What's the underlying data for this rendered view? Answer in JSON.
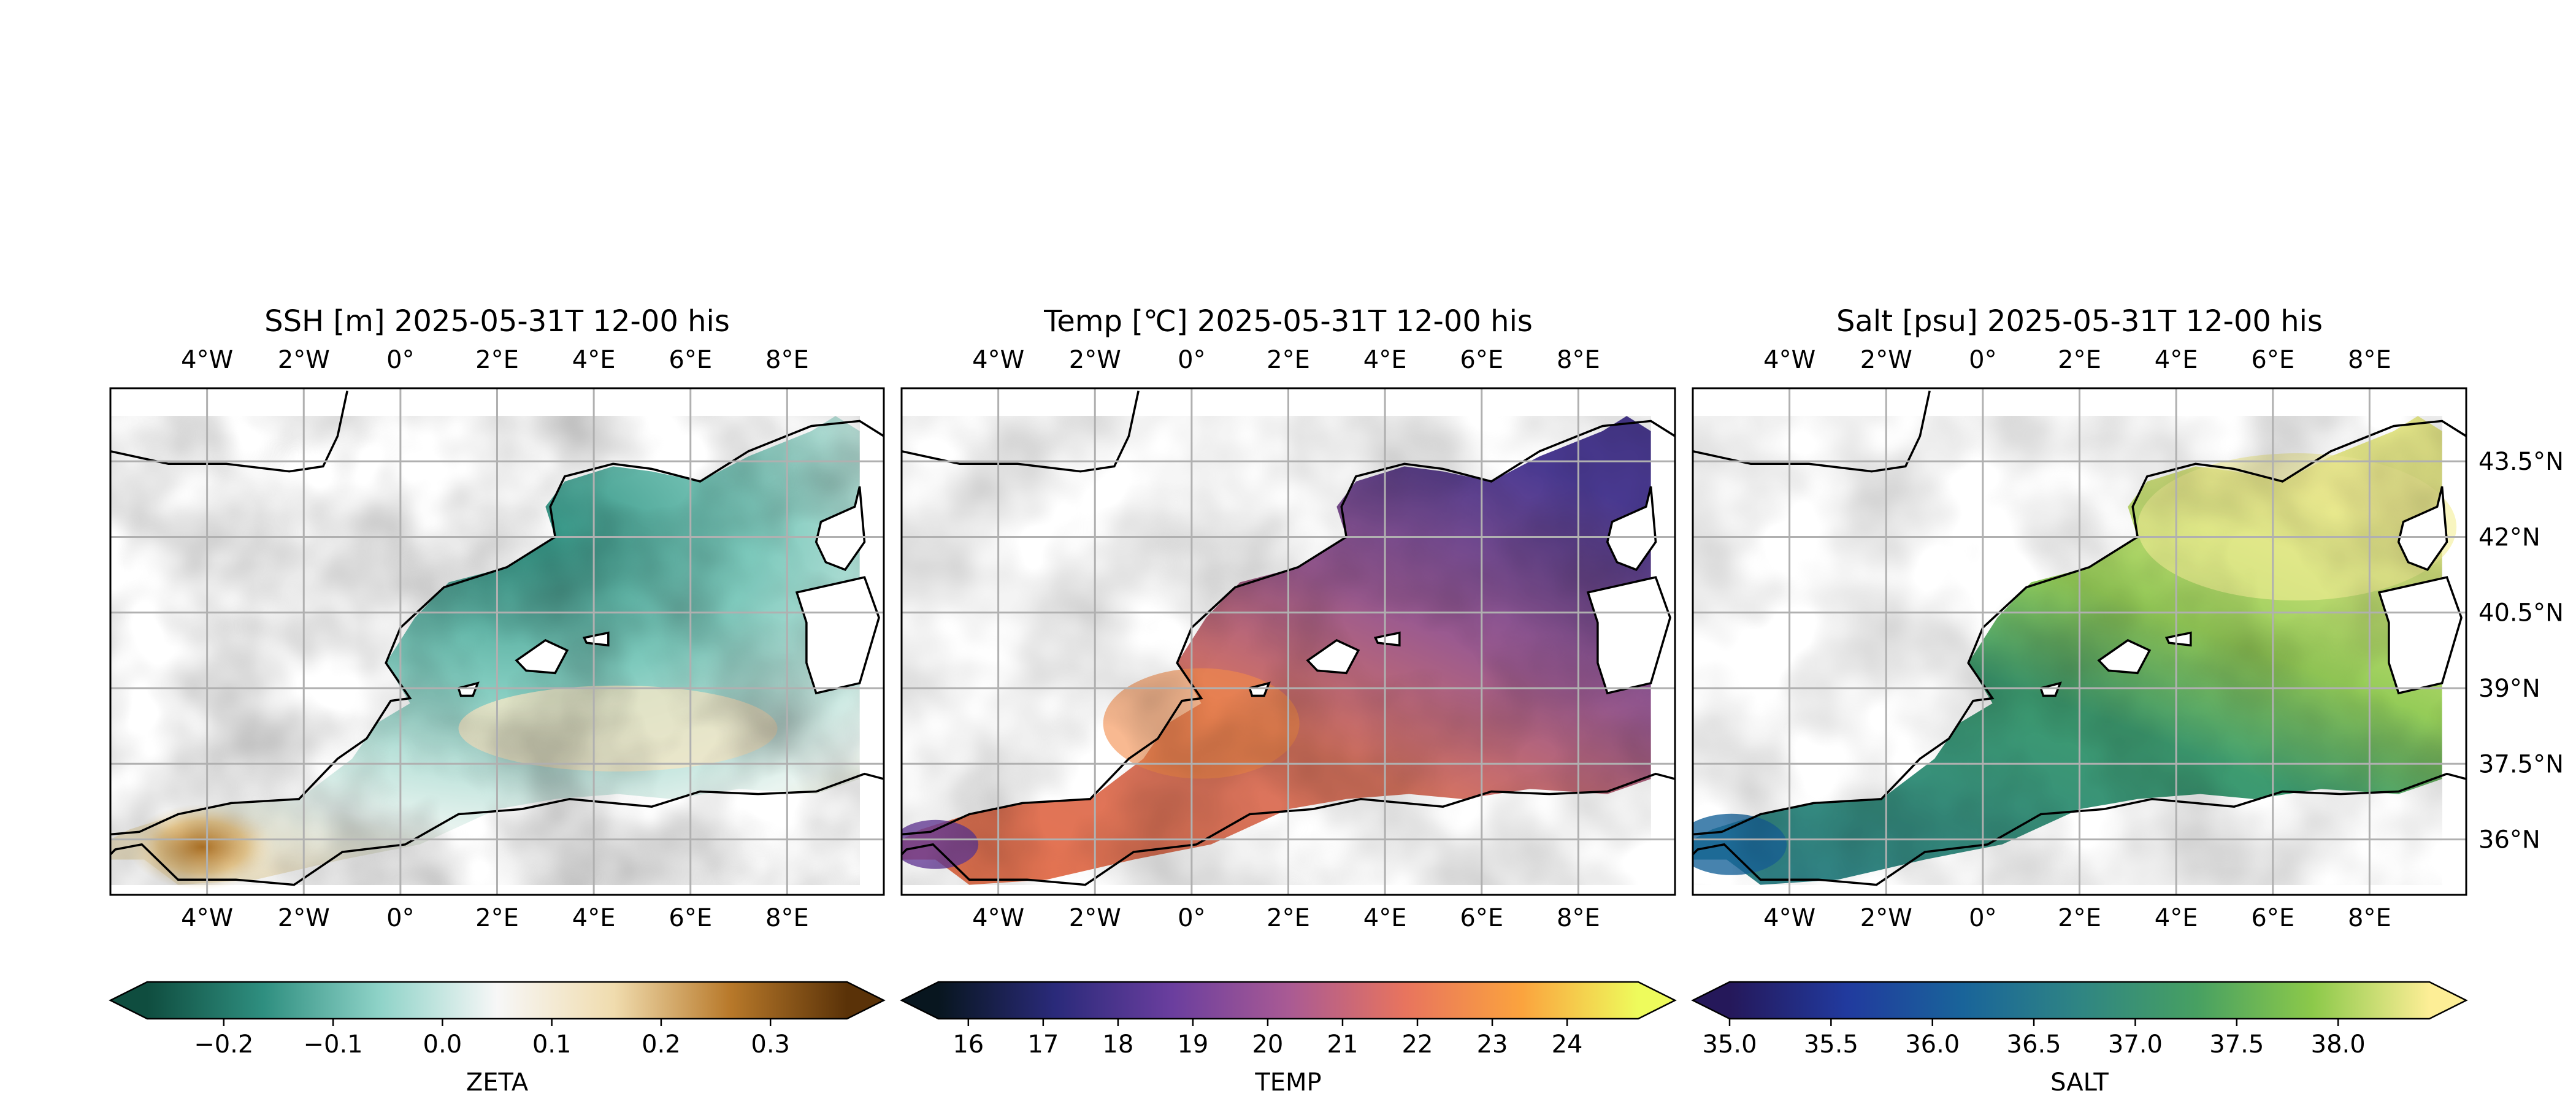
{
  "panels": [
    {
      "title": "SSH [m] 2025-05-31T 12-00 his",
      "colorbar": {
        "label": "ZETA",
        "ticks": [
          "−0.2",
          "−0.1",
          "0.0",
          "0.1",
          "0.2",
          "0.3"
        ],
        "tick_values": [
          -0.2,
          -0.1,
          0.0,
          0.1,
          0.2,
          0.3
        ],
        "range": [
          -0.27,
          0.37
        ],
        "colors": [
          "#0f4d3f",
          "#2f8f80",
          "#8fd3c8",
          "#f7f7f7",
          "#f0dcae",
          "#b8792a",
          "#5a3208"
        ]
      }
    },
    {
      "title": "Temp [℃] 2025-05-31T 12-00 his",
      "colorbar": {
        "label": "TEMP",
        "ticks": [
          "16",
          "17",
          "18",
          "19",
          "20",
          "21",
          "22",
          "23",
          "24"
        ],
        "tick_values": [
          16,
          17,
          18,
          19,
          20,
          21,
          22,
          23,
          24
        ],
        "range": [
          15.6,
          24.95
        ],
        "colors": [
          "#08161f",
          "#2a2a7a",
          "#6a3e9e",
          "#a95a94",
          "#e8745e",
          "#fba33e",
          "#eefb5c"
        ]
      }
    },
    {
      "title": "Salt [psu] 2025-05-31T 12-00 his",
      "colorbar": {
        "label": "SALT",
        "ticks": [
          "35.0",
          "35.5",
          "36.0",
          "36.5",
          "37.0",
          "37.5",
          "38.0"
        ],
        "tick_values": [
          35.0,
          35.5,
          36.0,
          36.5,
          37.0,
          37.5,
          38.0
        ],
        "range": [
          35.0,
          38.45
        ],
        "colors": [
          "#25185a",
          "#213a9e",
          "#19649a",
          "#2f8583",
          "#47a062",
          "#8cc94a",
          "#fdee96"
        ]
      }
    }
  ],
  "lon_ticks": [
    "4°W",
    "2°W",
    "0°",
    "2°E",
    "4°E",
    "6°E",
    "8°E"
  ],
  "lon_values": [
    -4,
    -2,
    0,
    2,
    4,
    6,
    8
  ],
  "lat_ticks": [
    "43.5°N",
    "42°N",
    "40.5°N",
    "39°N",
    "37.5°N",
    "36°N"
  ],
  "lat_values": [
    43.5,
    42,
    40.5,
    39,
    37.5,
    36
  ],
  "map_extent": {
    "lon": [
      -6,
      10
    ],
    "lat": [
      34.9,
      44.95
    ]
  }
}
